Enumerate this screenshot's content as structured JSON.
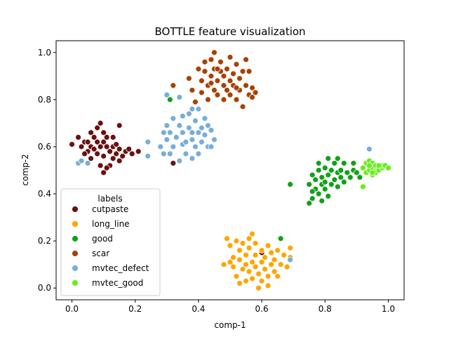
{
  "chart_data": {
    "type": "scatter",
    "title": "BOTTLE feature visualization",
    "xlabel": "comp-1",
    "ylabel": "comp-2",
    "xlim": [
      -0.05,
      1.05
    ],
    "ylim": [
      -0.05,
      1.05
    ],
    "xticks": [
      0.0,
      0.2,
      0.4,
      0.6,
      0.8,
      1.0
    ],
    "yticks": [
      0.0,
      0.2,
      0.4,
      0.6,
      0.8,
      1.0
    ],
    "xtick_labels": [
      "0.0",
      "0.2",
      "0.4",
      "0.6",
      "0.8",
      "1.0"
    ],
    "ytick_labels": [
      "0.0",
      "0.2",
      "0.4",
      "0.6",
      "0.8",
      "1.0"
    ],
    "grid": false,
    "legend_title": "labels",
    "legend_position": "lower-left",
    "series": [
      {
        "name": "cutpaste",
        "color": "#6b1010",
        "points": [
          [
            0.0,
            0.61
          ],
          [
            0.02,
            0.64
          ],
          [
            0.03,
            0.6
          ],
          [
            0.04,
            0.62
          ],
          [
            0.05,
            0.58
          ],
          [
            0.05,
            0.62
          ],
          [
            0.06,
            0.6
          ],
          [
            0.06,
            0.66
          ],
          [
            0.07,
            0.59
          ],
          [
            0.07,
            0.64
          ],
          [
            0.08,
            0.57
          ],
          [
            0.08,
            0.62
          ],
          [
            0.08,
            0.68
          ],
          [
            0.09,
            0.6
          ],
          [
            0.09,
            0.7
          ],
          [
            0.1,
            0.56
          ],
          [
            0.1,
            0.62
          ],
          [
            0.1,
            0.66
          ],
          [
            0.11,
            0.6
          ],
          [
            0.11,
            0.64
          ],
          [
            0.12,
            0.58
          ],
          [
            0.12,
            0.52
          ],
          [
            0.13,
            0.6
          ],
          [
            0.13,
            0.64
          ],
          [
            0.14,
            0.57
          ],
          [
            0.14,
            0.61
          ],
          [
            0.15,
            0.54
          ],
          [
            0.15,
            0.59
          ],
          [
            0.15,
            0.69
          ],
          [
            0.16,
            0.56
          ],
          [
            0.17,
            0.58
          ],
          [
            0.18,
            0.59
          ],
          [
            0.19,
            0.57
          ],
          [
            0.21,
            0.58
          ],
          [
            0.09,
            0.52
          ],
          [
            0.1,
            0.49
          ],
          [
            0.11,
            0.51
          ],
          [
            0.04,
            0.57
          ],
          [
            0.06,
            0.55
          ],
          [
            0.13,
            0.55
          ],
          [
            0.6,
            0.15
          ],
          [
            0.32,
            0.53
          ]
        ]
      },
      {
        "name": "long_line",
        "color": "#ffa500",
        "points": [
          [
            0.49,
            0.21
          ],
          [
            0.5,
            0.18
          ],
          [
            0.5,
            0.11
          ],
          [
            0.51,
            0.09
          ],
          [
            0.51,
            0.13
          ],
          [
            0.52,
            0.2
          ],
          [
            0.52,
            0.05
          ],
          [
            0.53,
            0.12
          ],
          [
            0.53,
            0.16
          ],
          [
            0.54,
            0.08
          ],
          [
            0.54,
            0.19
          ],
          [
            0.55,
            0.03
          ],
          [
            0.55,
            0.1
          ],
          [
            0.55,
            0.14
          ],
          [
            0.56,
            0.07
          ],
          [
            0.56,
            0.17
          ],
          [
            0.56,
            0.21
          ],
          [
            0.57,
            0.11
          ],
          [
            0.57,
            0.04
          ],
          [
            0.58,
            0.09
          ],
          [
            0.58,
            0.14
          ],
          [
            0.58,
            0.19
          ],
          [
            0.59,
            0.0
          ],
          [
            0.59,
            0.06
          ],
          [
            0.6,
            0.11
          ],
          [
            0.6,
            0.16
          ],
          [
            0.6,
            0.03
          ],
          [
            0.61,
            0.08
          ],
          [
            0.61,
            0.13
          ],
          [
            0.62,
            0.05
          ],
          [
            0.62,
            0.18
          ],
          [
            0.63,
            0.1
          ],
          [
            0.63,
            0.15
          ],
          [
            0.64,
            0.07
          ],
          [
            0.64,
            0.12
          ],
          [
            0.65,
            0.05
          ],
          [
            0.65,
            0.16
          ],
          [
            0.66,
            0.1
          ],
          [
            0.67,
            0.14
          ],
          [
            0.68,
            0.09
          ],
          [
            0.69,
            0.13
          ],
          [
            0.69,
            0.17
          ],
          [
            0.53,
            0.02
          ],
          [
            0.57,
            0.23
          ],
          [
            0.48,
            0.1
          ],
          [
            0.62,
            0.01
          ]
        ]
      },
      {
        "name": "good",
        "color": "#11a11a",
        "points": [
          [
            0.31,
            0.8
          ],
          [
            0.66,
            0.21
          ],
          [
            0.69,
            0.44
          ],
          [
            0.75,
            0.36
          ],
          [
            0.75,
            0.44
          ],
          [
            0.76,
            0.48
          ],
          [
            0.76,
            0.38
          ],
          [
            0.77,
            0.42
          ],
          [
            0.77,
            0.46
          ],
          [
            0.78,
            0.4
          ],
          [
            0.78,
            0.5
          ],
          [
            0.79,
            0.44
          ],
          [
            0.79,
            0.47
          ],
          [
            0.8,
            0.42
          ],
          [
            0.8,
            0.45
          ],
          [
            0.8,
            0.51
          ],
          [
            0.81,
            0.48
          ],
          [
            0.81,
            0.55
          ],
          [
            0.82,
            0.44
          ],
          [
            0.82,
            0.5
          ],
          [
            0.83,
            0.46
          ],
          [
            0.83,
            0.53
          ],
          [
            0.84,
            0.49
          ],
          [
            0.84,
            0.43
          ],
          [
            0.85,
            0.47
          ],
          [
            0.85,
            0.5
          ],
          [
            0.86,
            0.45
          ],
          [
            0.86,
            0.53
          ],
          [
            0.87,
            0.49
          ],
          [
            0.88,
            0.47
          ],
          [
            0.89,
            0.5
          ],
          [
            0.89,
            0.53
          ],
          [
            0.9,
            0.49
          ],
          [
            0.91,
            0.47
          ],
          [
            0.79,
            0.37
          ],
          [
            0.76,
            0.41
          ],
          [
            0.84,
            0.55
          ],
          [
            0.78,
            0.53
          ],
          [
            0.81,
            0.39
          ]
        ]
      },
      {
        "name": "scar",
        "color": "#a84200",
        "points": [
          [
            0.32,
            0.86
          ],
          [
            0.37,
            0.89
          ],
          [
            0.38,
            0.84
          ],
          [
            0.39,
            0.79
          ],
          [
            0.4,
            0.93
          ],
          [
            0.41,
            0.88
          ],
          [
            0.41,
            0.83
          ],
          [
            0.42,
            0.92
          ],
          [
            0.42,
            0.96
          ],
          [
            0.43,
            0.86
          ],
          [
            0.43,
            0.8
          ],
          [
            0.44,
            0.9
          ],
          [
            0.44,
            0.97
          ],
          [
            0.45,
            0.84
          ],
          [
            0.45,
            0.93
          ],
          [
            0.45,
            1.0
          ],
          [
            0.46,
            0.88
          ],
          [
            0.46,
            0.82
          ],
          [
            0.47,
            0.92
          ],
          [
            0.47,
            0.96
          ],
          [
            0.48,
            0.86
          ],
          [
            0.48,
            0.9
          ],
          [
            0.48,
            0.8
          ],
          [
            0.49,
            0.93
          ],
          [
            0.49,
            0.84
          ],
          [
            0.5,
            0.88
          ],
          [
            0.5,
            0.98
          ],
          [
            0.5,
            0.82
          ],
          [
            0.51,
            0.91
          ],
          [
            0.51,
            0.86
          ],
          [
            0.52,
            0.95
          ],
          [
            0.52,
            0.8
          ],
          [
            0.53,
            0.89
          ],
          [
            0.53,
            0.84
          ],
          [
            0.54,
            0.92
          ],
          [
            0.54,
            0.77
          ],
          [
            0.55,
            0.86
          ],
          [
            0.55,
            0.97
          ],
          [
            0.56,
            0.92
          ],
          [
            0.56,
            0.82
          ],
          [
            0.57,
            0.81
          ],
          [
            0.57,
            0.85
          ],
          [
            0.58,
            0.83
          ],
          [
            0.52,
            0.85
          ],
          [
            0.46,
            0.93
          ],
          [
            0.44,
            0.87
          ]
        ]
      },
      {
        "name": "mvtec_defect",
        "color": "#77aed8",
        "points": [
          [
            0.02,
            0.53
          ],
          [
            0.03,
            0.54
          ],
          [
            0.05,
            0.53
          ],
          [
            0.24,
            0.56
          ],
          [
            0.24,
            0.62
          ],
          [
            0.28,
            0.6
          ],
          [
            0.29,
            0.66
          ],
          [
            0.29,
            0.57
          ],
          [
            0.3,
            0.69
          ],
          [
            0.3,
            0.63
          ],
          [
            0.31,
            0.57
          ],
          [
            0.31,
            0.66
          ],
          [
            0.32,
            0.72
          ],
          [
            0.32,
            0.6
          ],
          [
            0.33,
            0.64
          ],
          [
            0.34,
            0.69
          ],
          [
            0.34,
            0.54
          ],
          [
            0.35,
            0.61
          ],
          [
            0.35,
            0.66
          ],
          [
            0.35,
            0.73
          ],
          [
            0.36,
            0.62
          ],
          [
            0.36,
            0.57
          ],
          [
            0.37,
            0.68
          ],
          [
            0.37,
            0.74
          ],
          [
            0.38,
            0.66
          ],
          [
            0.38,
            0.63
          ],
          [
            0.38,
            0.76
          ],
          [
            0.39,
            0.6
          ],
          [
            0.39,
            0.71
          ],
          [
            0.4,
            0.66
          ],
          [
            0.4,
            0.76
          ],
          [
            0.4,
            0.57
          ],
          [
            0.41,
            0.62
          ],
          [
            0.41,
            0.68
          ],
          [
            0.42,
            0.72
          ],
          [
            0.42,
            0.65
          ],
          [
            0.43,
            0.6
          ],
          [
            0.43,
            0.69
          ],
          [
            0.44,
            0.67
          ],
          [
            0.44,
            0.6
          ],
          [
            0.45,
            0.63
          ],
          [
            0.3,
            0.82
          ],
          [
            0.34,
            0.81
          ],
          [
            0.69,
            0.12
          ],
          [
            0.94,
            0.59
          ],
          [
            0.38,
            0.55
          ]
        ]
      },
      {
        "name": "mvtec_good",
        "color": "#66ee1a",
        "points": [
          [
            0.92,
            0.43
          ],
          [
            0.92,
            0.51
          ],
          [
            0.93,
            0.49
          ],
          [
            0.93,
            0.53
          ],
          [
            0.94,
            0.5
          ],
          [
            0.94,
            0.54
          ],
          [
            0.95,
            0.48
          ],
          [
            0.95,
            0.51
          ],
          [
            0.95,
            0.53
          ],
          [
            0.96,
            0.5
          ],
          [
            0.96,
            0.52
          ],
          [
            0.96,
            0.49
          ],
          [
            0.97,
            0.51
          ],
          [
            0.97,
            0.5
          ],
          [
            0.98,
            0.51
          ],
          [
            0.98,
            0.52
          ],
          [
            0.99,
            0.52
          ],
          [
            1.0,
            0.51
          ],
          [
            0.94,
            0.52
          ],
          [
            0.95,
            0.49
          ],
          [
            0.97,
            0.52
          ]
        ]
      }
    ]
  }
}
